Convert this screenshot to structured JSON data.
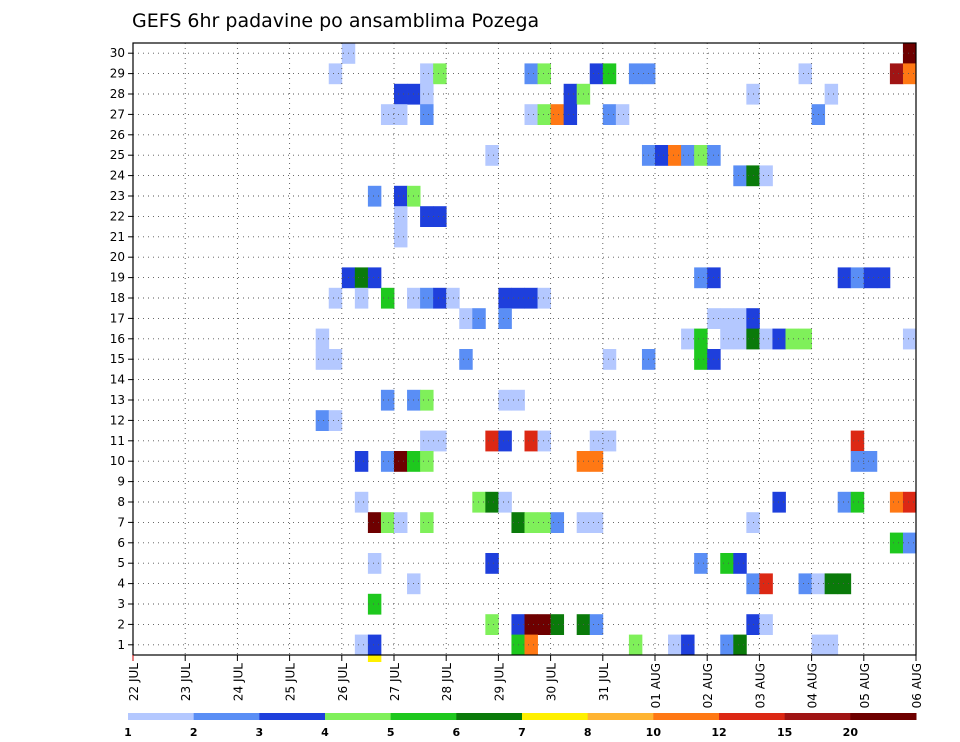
{
  "chart_data": {
    "type": "heatmap",
    "title": "GEFS 6hr padavine po ansamblima Pozega",
    "xlabel": "",
    "ylabel": "",
    "x_tick_labels": [
      "22 JUL",
      "23 JUL",
      "24 JUL",
      "25 JUL",
      "26 JUL",
      "27 JUL",
      "28 JUL",
      "29 JUL",
      "30 JUL",
      "31 JUL",
      "01 AUG",
      "02 AUG",
      "03 AUG",
      "04 AUG",
      "05 AUG",
      "06 AUG"
    ],
    "y_tick_labels": [
      "1",
      "2",
      "3",
      "4",
      "5",
      "6",
      "7",
      "8",
      "9",
      "10",
      "11",
      "12",
      "13",
      "14",
      "15",
      "16",
      "17",
      "18",
      "19",
      "20",
      "21",
      "22",
      "23",
      "24",
      "25",
      "26",
      "27",
      "28",
      "29",
      "30"
    ],
    "x_steps_per_day": 4,
    "grid": true,
    "colorbar": {
      "levels": [
        "1",
        "2",
        "3",
        "4",
        "5",
        "6",
        "7",
        "8",
        "10",
        "12",
        "15",
        "20"
      ],
      "colors": [
        "#b4c8ff",
        "#5a8ef5",
        "#1e3fdc",
        "#7ff05a",
        "#1ec81e",
        "#0a7a0a",
        "#fff000",
        "#ffb432",
        "#ff7814",
        "#dc2814",
        "#a01414",
        "#6e0000"
      ]
    },
    "cells": [
      [
        16,
        30,
        0
      ],
      [
        59,
        30,
        1
      ],
      [
        59,
        30,
        11
      ],
      [
        15,
        29,
        0
      ],
      [
        22,
        29,
        0
      ],
      [
        23,
        29,
        3
      ],
      [
        30,
        29,
        1
      ],
      [
        31,
        29,
        3
      ],
      [
        35,
        29,
        2
      ],
      [
        36,
        29,
        4
      ],
      [
        38,
        29,
        1
      ],
      [
        39,
        29,
        1
      ],
      [
        51,
        29,
        0
      ],
      [
        58,
        29,
        10
      ],
      [
        59,
        29,
        8
      ],
      [
        20,
        28,
        2
      ],
      [
        21,
        28,
        2
      ],
      [
        22,
        28,
        0
      ],
      [
        33,
        28,
        2
      ],
      [
        34,
        28,
        3
      ],
      [
        47,
        28,
        0
      ],
      [
        53,
        28,
        0
      ],
      [
        19,
        27,
        0
      ],
      [
        20,
        27,
        0
      ],
      [
        22,
        27,
        1
      ],
      [
        30,
        27,
        0
      ],
      [
        31,
        27,
        3
      ],
      [
        32,
        27,
        8
      ],
      [
        33,
        27,
        2
      ],
      [
        36,
        27,
        1
      ],
      [
        37,
        27,
        0
      ],
      [
        52,
        27,
        1
      ],
      [
        27,
        25,
        0
      ],
      [
        39,
        25,
        1
      ],
      [
        40,
        25,
        2
      ],
      [
        41,
        25,
        8
      ],
      [
        42,
        25,
        1
      ],
      [
        43,
        25,
        3
      ],
      [
        44,
        25,
        1
      ],
      [
        46,
        24,
        1
      ],
      [
        47,
        24,
        5
      ],
      [
        48,
        24,
        0
      ],
      [
        18,
        23,
        1
      ],
      [
        20,
        23,
        2
      ],
      [
        21,
        23,
        3
      ],
      [
        20,
        22,
        0
      ],
      [
        22,
        22,
        2
      ],
      [
        23,
        22,
        2
      ],
      [
        20,
        21,
        0
      ],
      [
        16,
        19,
        2
      ],
      [
        17,
        19,
        5
      ],
      [
        18,
        19,
        2
      ],
      [
        43,
        19,
        1
      ],
      [
        44,
        19,
        2
      ],
      [
        54,
        19,
        2
      ],
      [
        55,
        19,
        1
      ],
      [
        56,
        19,
        2
      ],
      [
        57,
        19,
        2
      ],
      [
        15,
        18,
        0
      ],
      [
        17,
        18,
        0
      ],
      [
        19,
        18,
        4
      ],
      [
        21,
        18,
        0
      ],
      [
        22,
        18,
        1
      ],
      [
        23,
        18,
        2
      ],
      [
        24,
        18,
        0
      ],
      [
        28,
        18,
        2
      ],
      [
        29,
        18,
        2
      ],
      [
        30,
        18,
        2
      ],
      [
        31,
        18,
        0
      ],
      [
        25,
        17,
        0
      ],
      [
        26,
        17,
        1
      ],
      [
        28,
        17,
        1
      ],
      [
        44,
        17,
        0
      ],
      [
        45,
        17,
        0
      ],
      [
        46,
        17,
        0
      ],
      [
        47,
        17,
        2
      ],
      [
        14,
        16,
        0
      ],
      [
        42,
        16,
        0
      ],
      [
        43,
        16,
        4
      ],
      [
        45,
        16,
        0
      ],
      [
        46,
        16,
        0
      ],
      [
        47,
        16,
        5
      ],
      [
        48,
        16,
        0
      ],
      [
        49,
        16,
        2
      ],
      [
        50,
        16,
        3
      ],
      [
        51,
        16,
        3
      ],
      [
        59,
        16,
        0
      ],
      [
        14,
        15,
        0
      ],
      [
        15,
        15,
        0
      ],
      [
        25,
        15,
        1
      ],
      [
        36,
        15,
        0
      ],
      [
        39,
        15,
        1
      ],
      [
        43,
        15,
        4
      ],
      [
        44,
        15,
        2
      ],
      [
        19,
        13,
        1
      ],
      [
        21,
        13,
        1
      ],
      [
        22,
        13,
        3
      ],
      [
        28,
        13,
        0
      ],
      [
        29,
        13,
        0
      ],
      [
        14,
        12,
        1
      ],
      [
        15,
        12,
        0
      ],
      [
        22,
        11,
        0
      ],
      [
        23,
        11,
        0
      ],
      [
        27,
        11,
        9
      ],
      [
        28,
        11,
        2
      ],
      [
        30,
        11,
        9
      ],
      [
        31,
        11,
        0
      ],
      [
        35,
        11,
        0
      ],
      [
        36,
        11,
        0
      ],
      [
        55,
        11,
        9
      ],
      [
        17,
        10,
        2
      ],
      [
        19,
        10,
        1
      ],
      [
        20,
        10,
        11
      ],
      [
        21,
        10,
        4
      ],
      [
        22,
        10,
        3
      ],
      [
        34,
        10,
        8
      ],
      [
        35,
        10,
        8
      ],
      [
        55,
        10,
        1
      ],
      [
        56,
        10,
        1
      ],
      [
        17,
        8,
        0
      ],
      [
        26,
        8,
        3
      ],
      [
        27,
        8,
        5
      ],
      [
        28,
        8,
        0
      ],
      [
        49,
        8,
        2
      ],
      [
        54,
        8,
        1
      ],
      [
        55,
        8,
        4
      ],
      [
        58,
        8,
        8
      ],
      [
        59,
        8,
        9
      ],
      [
        18,
        7,
        11
      ],
      [
        19,
        7,
        3
      ],
      [
        20,
        7,
        0
      ],
      [
        22,
        7,
        3
      ],
      [
        29,
        7,
        5
      ],
      [
        30,
        7,
        3
      ],
      [
        31,
        7,
        3
      ],
      [
        32,
        7,
        1
      ],
      [
        34,
        7,
        0
      ],
      [
        35,
        7,
        0
      ],
      [
        47,
        7,
        0
      ],
      [
        58,
        6,
        4
      ],
      [
        59,
        6,
        1
      ],
      [
        18,
        5,
        0
      ],
      [
        27,
        5,
        2
      ],
      [
        43,
        5,
        1
      ],
      [
        45,
        5,
        4
      ],
      [
        46,
        5,
        2
      ],
      [
        21,
        4,
        0
      ],
      [
        47,
        4,
        1
      ],
      [
        48,
        4,
        9
      ],
      [
        51,
        4,
        1
      ],
      [
        52,
        4,
        0
      ],
      [
        53,
        4,
        5
      ],
      [
        54,
        4,
        5
      ],
      [
        18,
        3,
        4
      ],
      [
        27,
        2,
        3
      ],
      [
        29,
        2,
        2
      ],
      [
        30,
        2,
        11
      ],
      [
        31,
        2,
        11
      ],
      [
        32,
        2,
        5
      ],
      [
        34,
        2,
        5
      ],
      [
        35,
        2,
        1
      ],
      [
        47,
        2,
        2
      ],
      [
        48,
        2,
        0
      ],
      [
        17,
        1,
        0
      ],
      [
        18,
        1,
        2
      ],
      [
        29,
        1,
        4
      ],
      [
        30,
        1,
        8
      ],
      [
        38,
        1,
        3
      ],
      [
        41,
        1,
        0
      ],
      [
        42,
        1,
        2
      ],
      [
        45,
        1,
        1
      ],
      [
        46,
        1,
        5
      ],
      [
        52,
        1,
        0
      ],
      [
        53,
        1,
        0
      ],
      [
        18,
        0,
        6
      ]
    ]
  }
}
